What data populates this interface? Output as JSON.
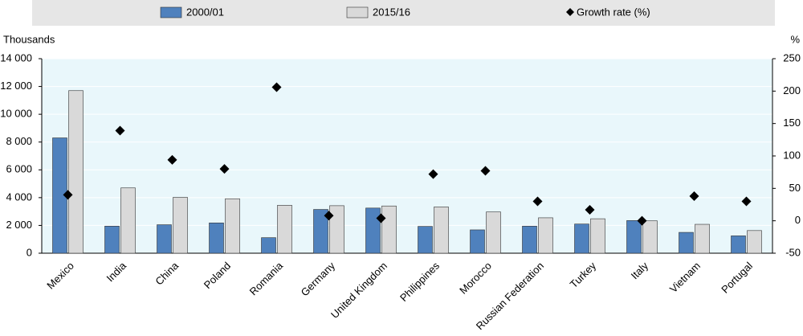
{
  "chart_data": {
    "type": "bar",
    "y_axis_label": "Thousands",
    "y2_axis_label": "%",
    "categories": [
      "Mexico",
      "India",
      "China",
      "Poland",
      "Romania",
      "Germany",
      "United Kingdom",
      "Philippines",
      "Morocco",
      "Russian Federation",
      "Turkey",
      "Italy",
      "Vietnam",
      "Portugal"
    ],
    "series": [
      {
        "name": "2000/01",
        "type": "bar",
        "color": "#4f81bd",
        "values": [
          8300,
          1950,
          2050,
          2180,
          1120,
          3150,
          3250,
          1930,
          1680,
          1950,
          2100,
          2350,
          1500,
          1250
        ]
      },
      {
        "name": "2015/16",
        "type": "bar",
        "color": "#d9d9d9",
        "values": [
          11700,
          4700,
          4020,
          3920,
          3450,
          3420,
          3400,
          3330,
          2970,
          2550,
          2480,
          2330,
          2080,
          1630
        ]
      },
      {
        "name": "Growth rate (%)",
        "type": "scatter",
        "axis": "y2",
        "color": "#000000",
        "values": [
          40,
          139,
          94,
          80,
          206,
          8,
          4,
          72,
          77,
          30,
          17,
          0,
          38,
          30
        ]
      }
    ],
    "ylim": [
      0,
      14000
    ],
    "yticks": [
      0,
      {
        "value": 2000,
        "label": "2 000"
      },
      {
        "value": 4000,
        "label": "4 000"
      },
      {
        "value": 6000,
        "label": "6 000"
      },
      {
        "value": 8000,
        "label": "8 000"
      },
      {
        "value": 10000,
        "label": "10 000"
      },
      {
        "value": 12000,
        "label": "12 000"
      },
      {
        "value": 14000,
        "label": "14 000"
      }
    ],
    "y2lim": [
      -50,
      250
    ],
    "y2ticks": [
      -50,
      0,
      50,
      100,
      150,
      200,
      250
    ],
    "grid": true
  }
}
